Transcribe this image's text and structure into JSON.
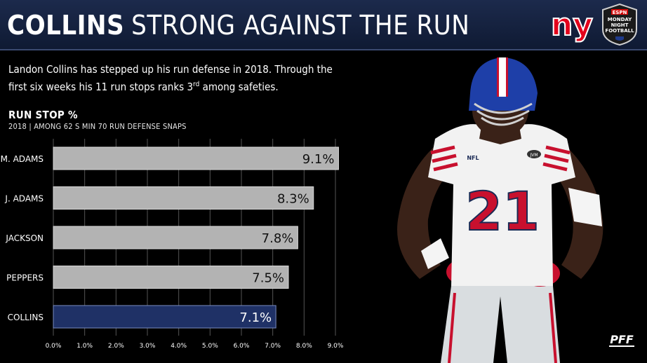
{
  "header": {
    "title_bold": "COLLINS",
    "title_rest": "STRONG AGAINST THE RUN",
    "team_logo_text": "ny",
    "broadcast_logo_lines": [
      "ESPN",
      "MONDAY",
      "NIGHT",
      "FOOTBALL"
    ],
    "background_color": "#1c2a4c"
  },
  "description": {
    "text_before_sup": "Landon Collins has stepped up his run defense in 2018. Through the first six weeks his 11 run stops ranks 3",
    "sup": "rd",
    "text_after_sup": " among safeties."
  },
  "player": {
    "jersey_number": "21",
    "jersey_badge": "NFL",
    "patch_text": "JVM"
  },
  "brand": {
    "pff_text": "PFF"
  },
  "chart_data": {
    "type": "bar",
    "orientation": "horizontal",
    "title": "RUN STOP %",
    "subtitle": "2018 | AMONG 62 S MIN 70 RUN DEFENSE SNAPS",
    "categories": [
      "M. ADAMS",
      "J. ADAMS",
      "JACKSON",
      "PEPPERS",
      "COLLINS"
    ],
    "values": [
      9.1,
      8.3,
      7.8,
      7.5,
      7.1
    ],
    "value_labels": [
      "9.1%",
      "8.3%",
      "7.8%",
      "7.5%",
      "7.1%"
    ],
    "highlight": "COLLINS",
    "xlim": [
      0,
      9
    ],
    "xticks": [
      "0.0%",
      "1.0%",
      "2.0%",
      "3.0%",
      "4.0%",
      "5.0%",
      "6.0%",
      "7.0%",
      "8.0%",
      "9.0%"
    ],
    "grid": true,
    "colors": {
      "bar": "#b3b3b3",
      "highlight": "#1f3166",
      "grid": "#555555"
    }
  }
}
